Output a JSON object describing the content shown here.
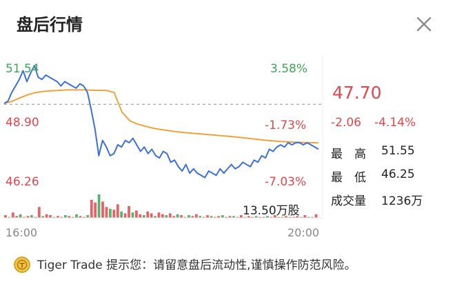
{
  "header": {
    "title": "盘后行情"
  },
  "chart": {
    "y_labels_left": {
      "high": "51.54",
      "mid": "48.90",
      "low": "46.26"
    },
    "y_labels_right": {
      "high": "3.58%",
      "mid": "-1.73%",
      "low": "-7.03%"
    },
    "volume_label": "13.50万股",
    "time_start": "16:00",
    "time_end": "20:00",
    "colors": {
      "price": "#3a6fdc",
      "avg": "#f0a23a",
      "up": "#3aa757",
      "down": "#e0464b"
    }
  },
  "quote": {
    "price": "47.70",
    "change": "-2.06",
    "change_pct": "-4.14%",
    "high_label": "最　高",
    "high_value": "51.55",
    "low_label": "最　低",
    "low_value": "46.25",
    "volume_label": "成交量",
    "volume_value": "1236万"
  },
  "footer": {
    "text": "Tiger Trade 提示您：请留意盘后流动性,谨慎操作防范风险。"
  },
  "chart_data": {
    "type": "line",
    "x_range": [
      "16:00",
      "20:00"
    ],
    "ylim": [
      46.26,
      51.54
    ],
    "reference_price": 49.76,
    "series": [
      {
        "values": [
          49.8,
          49.9,
          50.3,
          50.6,
          50.9,
          51.3,
          50.8,
          51.2,
          51.54,
          51.0,
          50.9,
          51.1,
          51.0,
          50.9,
          50.8,
          50.6,
          50.8,
          50.7,
          50.6,
          50.5,
          50.7,
          50.6,
          50.3,
          49.5,
          48.6,
          47.4,
          48.1,
          47.8,
          47.4,
          47.5,
          47.9,
          47.8,
          48.1,
          48.0,
          48.2,
          47.9,
          47.6,
          47.8,
          47.5,
          47.7,
          47.4,
          47.3,
          47.6,
          47.5,
          47.1,
          47.2,
          46.9,
          46.7,
          47.0,
          46.6,
          46.8,
          46.6,
          46.5,
          46.4,
          46.7,
          46.6,
          46.5,
          46.8,
          46.6,
          46.8,
          47.0,
          46.8,
          46.9,
          47.1,
          47.0,
          46.9,
          47.2,
          47.1,
          47.4,
          47.3,
          47.7,
          47.6,
          47.8,
          47.9,
          47.8,
          48.0,
          47.9,
          48.0,
          48.0,
          47.9,
          48.0,
          47.9,
          47.8,
          47.7
        ]
      },
      {
        "values": [
          49.8,
          49.9,
          50.05,
          50.2,
          50.3,
          50.35,
          50.38,
          50.4,
          50.42,
          50.42,
          50.42,
          50.41,
          50.4,
          50.4,
          50.3,
          49.4,
          49.0,
          48.85,
          48.75,
          48.66,
          48.6,
          48.55,
          48.5,
          48.46,
          48.43,
          48.4,
          48.37,
          48.34,
          48.31,
          48.28,
          48.24,
          48.2,
          48.16,
          48.12,
          48.09,
          48.06,
          48.04,
          48.02,
          48.01,
          48.0,
          47.99
        ]
      }
    ],
    "volume": [
      3,
      1,
      6,
      2,
      4,
      1,
      2,
      3,
      1,
      12,
      2,
      4,
      3,
      1,
      2,
      1,
      3,
      2,
      1,
      4,
      2,
      1,
      3,
      20,
      17,
      26,
      18,
      12,
      10,
      9,
      15,
      7,
      5,
      13,
      6,
      8,
      4,
      3,
      7,
      5,
      2,
      6,
      4,
      3,
      5,
      2,
      4,
      3,
      1,
      3,
      2,
      4,
      2,
      1,
      3,
      2,
      1,
      2,
      3,
      1,
      2,
      2,
      1,
      3,
      1,
      2,
      1,
      2,
      1,
      1,
      2,
      1,
      3,
      1,
      1,
      2,
      1,
      1,
      2,
      1,
      3,
      1,
      1,
      4
    ]
  }
}
